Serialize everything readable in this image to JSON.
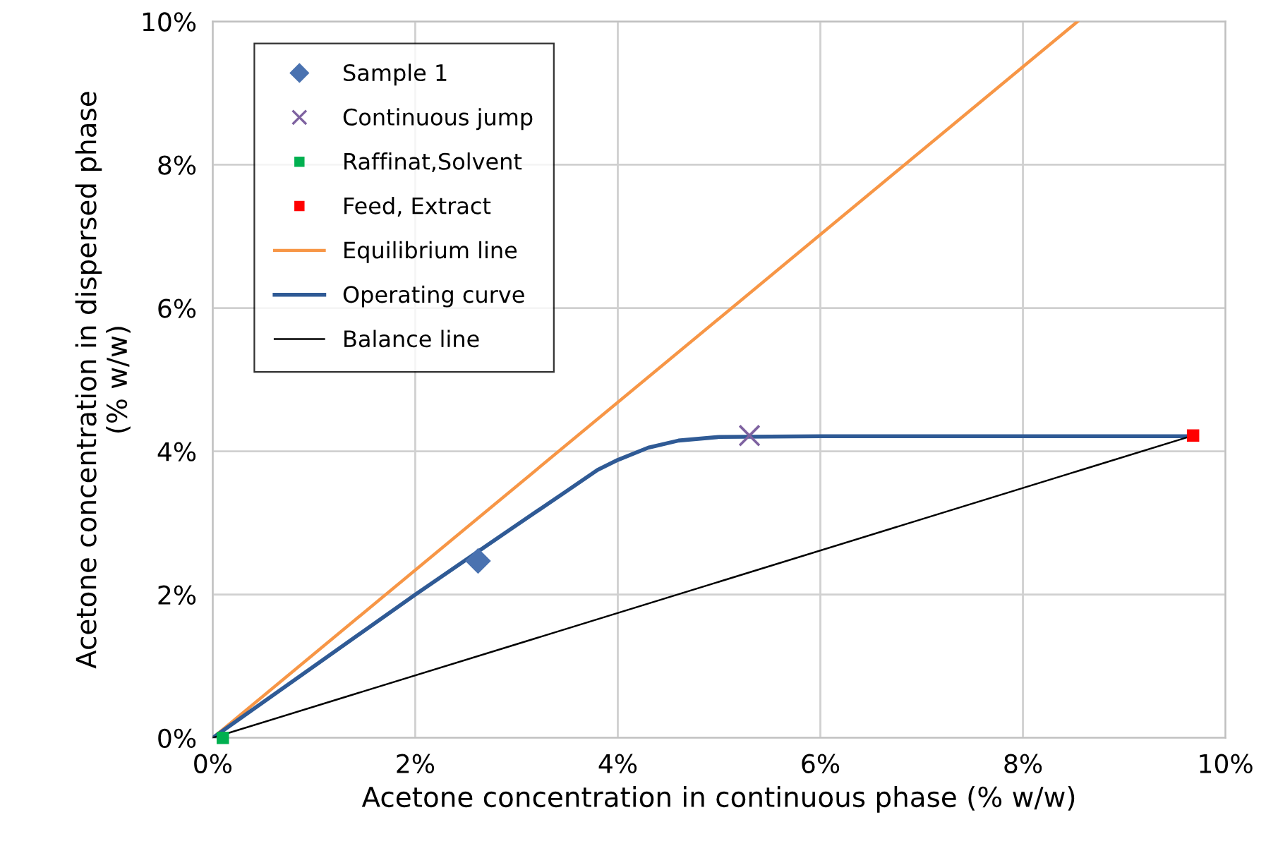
{
  "chart_data": {
    "type": "line",
    "xlabel": "Acetone concentration in continuous phase (% w/w)",
    "ylabel": "Acetone concentration in dispersed phase\n(% w/w)",
    "xlim": [
      0,
      10
    ],
    "ylim": [
      0,
      10
    ],
    "xticks": [
      {
        "value": 0,
        "label": "0%"
      },
      {
        "value": 2,
        "label": "2%"
      },
      {
        "value": 4,
        "label": "4%"
      },
      {
        "value": 6,
        "label": "6%"
      },
      {
        "value": 8,
        "label": "8%"
      },
      {
        "value": 10,
        "label": "10%"
      }
    ],
    "yticks": [
      {
        "value": 0,
        "label": "0%"
      },
      {
        "value": 2,
        "label": "2%"
      },
      {
        "value": 4,
        "label": "4%"
      },
      {
        "value": 6,
        "label": "6%"
      },
      {
        "value": 8,
        "label": "8%"
      },
      {
        "value": 10,
        "label": "10%"
      }
    ],
    "grid": true,
    "legend": "top left",
    "series": [
      {
        "name": "Sample 1",
        "type": "scatter",
        "marker": "diamond",
        "color": "#4a72b0",
        "x": [
          2.62
        ],
        "values": [
          2.47
        ]
      },
      {
        "name": "Continuous jump",
        "type": "scatter",
        "marker": "cross",
        "color": "#7e62a0",
        "x": [
          5.3
        ],
        "values": [
          4.22
        ]
      },
      {
        "name": "Raffinat,Solvent",
        "type": "scatter",
        "marker": "square",
        "color": "#00b050",
        "x": [
          0.1
        ],
        "values": [
          0
        ]
      },
      {
        "name": "Feed, Extract",
        "type": "scatter",
        "marker": "square",
        "color": "#ff0000",
        "x": [
          9.68
        ],
        "values": [
          4.22
        ]
      },
      {
        "name": "Equilibrium line",
        "color": "#f79646",
        "x": [
          0,
          8.54
        ],
        "values": [
          0,
          10
        ]
      },
      {
        "name": "Operating curve",
        "color": "#2f5a95",
        "x": [
          0,
          1,
          2,
          3,
          3.5,
          3.8,
          4,
          4.3,
          4.6,
          5,
          6,
          9.68
        ],
        "values": [
          0,
          1.0,
          2.0,
          2.97,
          3.45,
          3.74,
          3.88,
          4.05,
          4.15,
          4.2,
          4.21,
          4.21
        ]
      },
      {
        "name": "Balance line",
        "color": "#000000",
        "x": [
          0,
          9.68
        ],
        "values": [
          0,
          4.22
        ]
      }
    ]
  }
}
